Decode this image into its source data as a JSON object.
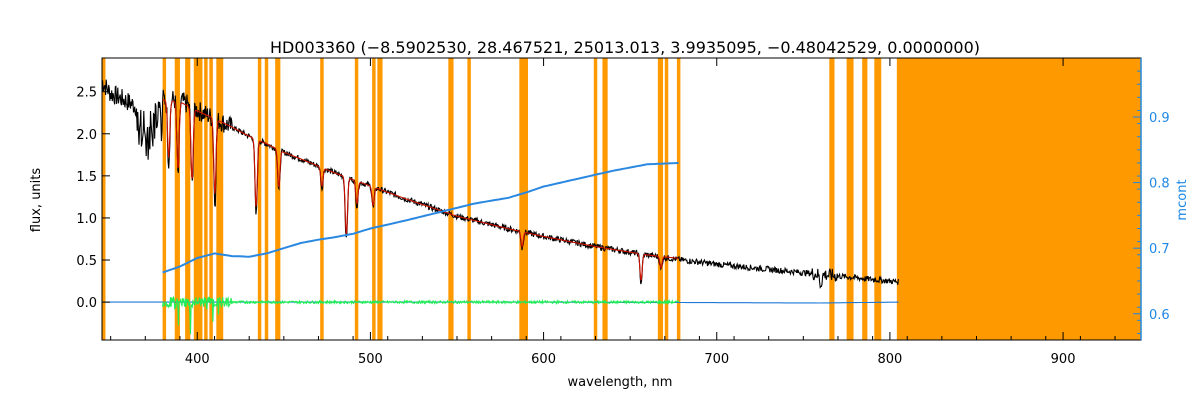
{
  "chart_data": {
    "type": "line",
    "title": "HD003360    (−8.5902530, 28.467521, 25013.013, 3.9935095, −0.48042529, 0.0000000)",
    "xlabel": "wavelength, nm",
    "ylabel": "flux, units",
    "y2label": "mcont",
    "xlim": [
      345,
      945
    ],
    "ylim": [
      -0.45,
      2.9
    ],
    "y2lim": [
      0.56,
      0.99
    ],
    "x_ticks": [
      400,
      500,
      600,
      700,
      800,
      900
    ],
    "y_ticks": [
      0.0,
      0.5,
      1.0,
      1.5,
      2.0,
      2.5
    ],
    "y_tick_labels": [
      "0.0",
      "0.5",
      "1.0",
      "1.5",
      "2.0",
      "2.5"
    ],
    "y2_ticks": [
      0.6,
      0.7,
      0.8,
      0.9
    ],
    "y2_tick_labels": [
      "0.6",
      "0.7",
      "0.8",
      "0.9"
    ],
    "grid": false,
    "masked_regions": [
      [
        345,
        347
      ],
      [
        380,
        382
      ],
      [
        387,
        390
      ],
      [
        393,
        396
      ],
      [
        398,
        403
      ],
      [
        404,
        406
      ],
      [
        407,
        409
      ],
      [
        411,
        415
      ],
      [
        435,
        437
      ],
      [
        439,
        441
      ],
      [
        445,
        448
      ],
      [
        471,
        473
      ],
      [
        491,
        493
      ],
      [
        501,
        503
      ],
      [
        504,
        507
      ],
      [
        545,
        548
      ],
      [
        556,
        558
      ],
      [
        586,
        591
      ],
      [
        629,
        631
      ],
      [
        634,
        637
      ],
      [
        666,
        669
      ],
      [
        670,
        672
      ],
      [
        677,
        679
      ],
      [
        765,
        768
      ],
      [
        775,
        779
      ],
      [
        784,
        787
      ],
      [
        791,
        795
      ],
      [
        804,
        945
      ]
    ],
    "absorption_lines": [
      {
        "x": 383.5,
        "depth": 0.75
      },
      {
        "x": 388.9,
        "depth": 0.9
      },
      {
        "x": 397.0,
        "depth": 0.95
      },
      {
        "x": 410.2,
        "depth": 1.0
      },
      {
        "x": 434.0,
        "depth": 0.9
      },
      {
        "x": 447.1,
        "depth": 0.5
      },
      {
        "x": 472.0,
        "depth": 0.25
      },
      {
        "x": 486.1,
        "depth": 0.75
      },
      {
        "x": 492.2,
        "depth": 0.3
      },
      {
        "x": 501.6,
        "depth": 0.25
      },
      {
        "x": 587.6,
        "depth": 0.2
      },
      {
        "x": 656.3,
        "depth": 0.35
      },
      {
        "x": 667.8,
        "depth": 0.15
      },
      {
        "x": 760.0,
        "depth": 0.12
      }
    ],
    "series": [
      {
        "color": "#000000",
        "x": [
          345,
          350,
          360,
          370,
          380,
          390,
          400,
          410,
          420,
          430,
          440,
          450,
          460,
          480,
          500,
          520,
          550,
          580,
          600,
          630,
          660,
          680,
          700,
          730,
          760,
          780,
          800,
          805
        ],
        "y": [
          2.62,
          2.48,
          2.38,
          2.26,
          2.42,
          2.4,
          2.28,
          2.18,
          2.08,
          1.97,
          1.88,
          1.78,
          1.7,
          1.53,
          1.38,
          1.23,
          1.02,
          0.87,
          0.78,
          0.66,
          0.56,
          0.5,
          0.45,
          0.39,
          0.33,
          0.29,
          0.25,
          0.24
        ]
      },
      {
        "color": "#cc1100",
        "x": [
          380,
          390,
          400,
          410,
          420,
          430,
          440,
          450,
          460,
          480,
          500,
          520,
          550,
          580,
          600,
          630,
          660,
          678
        ],
        "y": [
          2.4,
          2.38,
          2.27,
          2.18,
          2.08,
          1.97,
          1.88,
          1.78,
          1.7,
          1.53,
          1.38,
          1.23,
          1.02,
          0.87,
          0.78,
          0.66,
          0.56,
          0.52
        ]
      },
      {
        "color": "#2a88e0",
        "axis": "right",
        "x": [
          380,
          390,
          400,
          410,
          420,
          430,
          440,
          450,
          460,
          470,
          480,
          490,
          500,
          520,
          540,
          560,
          580,
          590,
          600,
          620,
          630,
          640,
          660,
          678
        ],
        "y": [
          0.663,
          0.672,
          0.685,
          0.692,
          0.688,
          0.687,
          0.692,
          0.7,
          0.708,
          0.713,
          0.717,
          0.722,
          0.73,
          0.742,
          0.755,
          0.768,
          0.777,
          0.785,
          0.794,
          0.806,
          0.812,
          0.818,
          0.828,
          0.83
        ]
      },
      {
        "color": "#1e78d8",
        "x": [
          345,
          380,
          600,
          760,
          805
        ],
        "y": [
          0.0,
          0.0,
          0.0,
          -0.01,
          0.0
        ]
      },
      {
        "color": "#22ee55",
        "x": [
          380,
          400,
          420,
          450,
          500,
          550,
          600,
          650,
          678
        ],
        "y": [
          0.0,
          0.0,
          0.0,
          0.0,
          0.0,
          0.0,
          0.0,
          0.0,
          0.0
        ]
      }
    ]
  }
}
